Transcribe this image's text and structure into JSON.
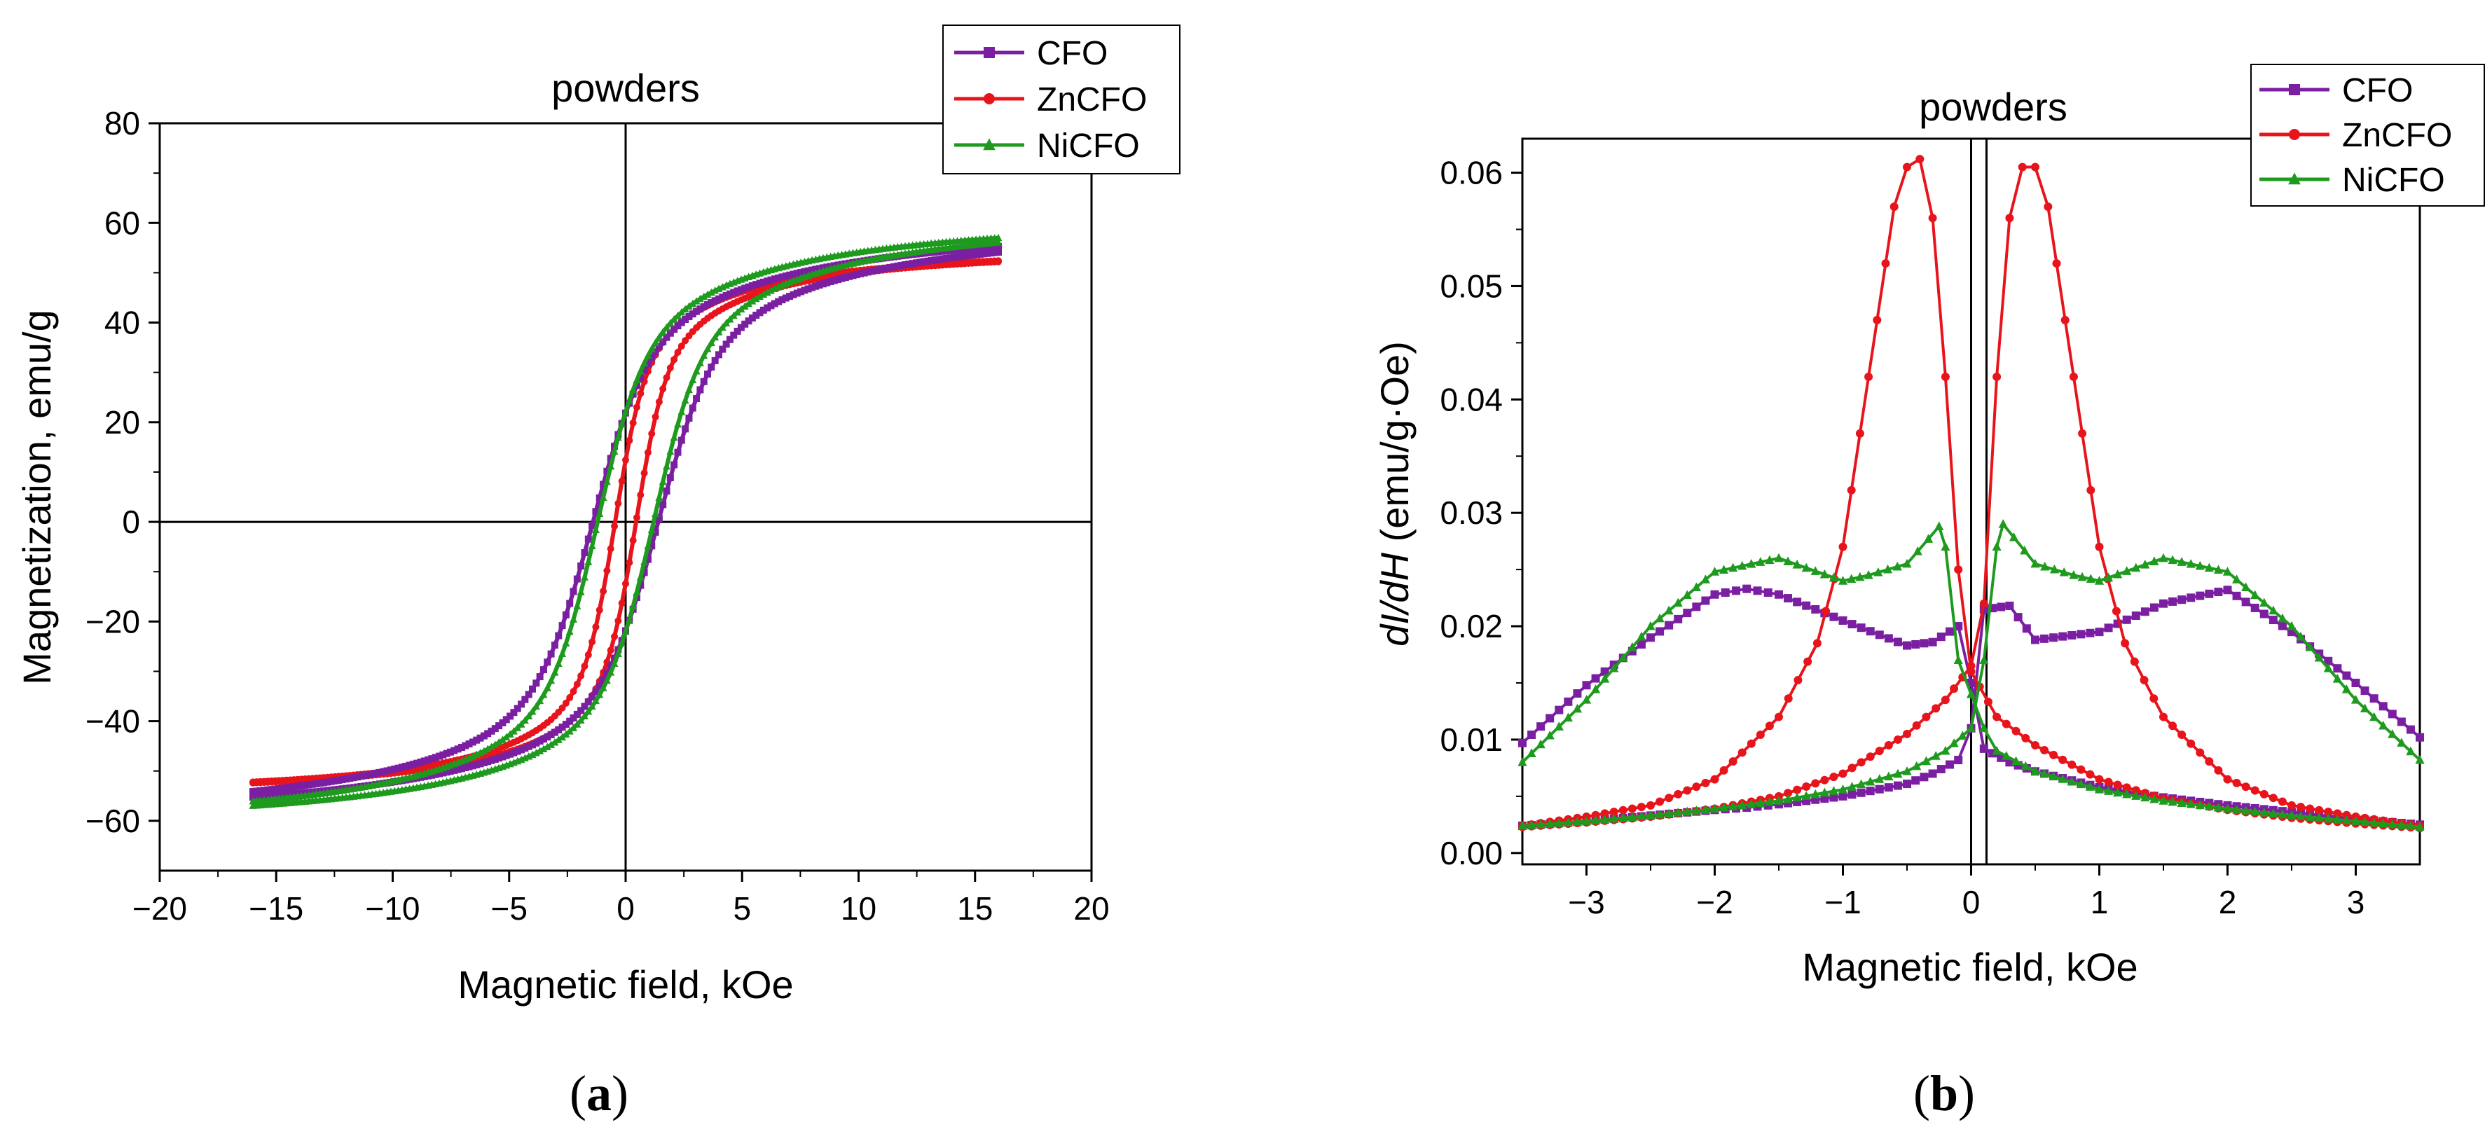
{
  "colors": {
    "CFO": "#7b1fa2",
    "ZnCFO": "#e8141c",
    "NiCFO": "#1e9a1e"
  },
  "chart_data": [
    {
      "type": "line",
      "panel_label": "a",
      "title": "powders",
      "xlabel": "Magnetic field, kOe",
      "ylabel": "Magnetization, emu/g",
      "xlim": [
        -20,
        20
      ],
      "ylim": [
        -70,
        80
      ],
      "xticks": [
        -20,
        -15,
        -10,
        -5,
        0,
        5,
        10,
        15,
        20
      ],
      "yticks": [
        -60,
        -40,
        -20,
        0,
        20,
        40,
        60,
        80
      ],
      "xtick_labels": [
        "−20",
        "−15",
        "−10",
        "−5",
        "0",
        "5",
        "10",
        "15",
        "20"
      ],
      "ytick_labels": [
        "−60",
        "−40",
        "−20",
        "0",
        "20",
        "40",
        "60",
        "80"
      ],
      "zero_lines": true,
      "legend": {
        "position": "top-right",
        "entries": [
          "CFO",
          "ZnCFO",
          "NiCFO"
        ]
      },
      "series": [
        {
          "name": "CFO",
          "marker": "square",
          "Ms": 62,
          "Hc": 1.4,
          "width": 2.2,
          "slope": 0.0
        },
        {
          "name": "ZnCFO",
          "marker": "circle",
          "Ms": 56,
          "Hc": 0.45,
          "width": 1.2,
          "slope": 0.0
        },
        {
          "name": "NiCFO",
          "marker": "triangle",
          "Ms": 63,
          "Hc": 1.2,
          "width": 1.9,
          "slope": 0.0
        }
      ]
    },
    {
      "type": "line",
      "panel_label": "b",
      "title": "powders",
      "xlabel": "Magnetic field, kOe",
      "ylabel_italic_part": "dI/dH",
      "ylabel_rest": " (emu/g·Oe)",
      "xlim": [
        -3.5,
        3.5
      ],
      "ylim": [
        -0.001,
        0.063
      ],
      "xticks": [
        -3,
        -2,
        -1,
        0,
        1,
        2,
        3
      ],
      "yticks": [
        0.0,
        0.01,
        0.02,
        0.03,
        0.04,
        0.05,
        0.06
      ],
      "xtick_labels": [
        "−3",
        "−2",
        "−1",
        "0",
        "1",
        "2",
        "3"
      ],
      "ytick_labels": [
        "0.00",
        "0.01",
        "0.02",
        "0.03",
        "0.04",
        "0.05",
        "0.06"
      ],
      "vertical_lines_x": [
        0,
        0.12
      ],
      "legend": {
        "position": "top-right",
        "entries": [
          "CFO",
          "ZnCFO",
          "NiCFO"
        ]
      },
      "series": [
        {
          "name": "CFO",
          "marker": "square",
          "branch": "up",
          "x": [
            -3.5,
            -3.0,
            -2.5,
            -2.0,
            -1.75,
            -1.5,
            -1.0,
            -0.5,
            -0.3,
            -0.1,
            0.0,
            0.1,
            0.3,
            0.5,
            1.0,
            1.5,
            2.0,
            2.5,
            3.0,
            3.5
          ],
          "y": [
            0.0024,
            0.0028,
            0.0033,
            0.0038,
            0.004,
            0.0043,
            0.005,
            0.0061,
            0.007,
            0.0082,
            0.011,
            0.0215,
            0.0218,
            0.0188,
            0.0195,
            0.022,
            0.0232,
            0.0195,
            0.015,
            0.0102
          ]
        },
        {
          "name": "CFO",
          "marker": "square",
          "branch": "down",
          "x": [
            -3.5,
            -3.0,
            -2.5,
            -2.0,
            -1.75,
            -1.5,
            -1.0,
            -0.5,
            -0.3,
            -0.1,
            0.0,
            0.1,
            0.3,
            0.5,
            1.0,
            1.5,
            2.0,
            2.5,
            3.0,
            3.5
          ],
          "y": [
            0.0097,
            0.0148,
            0.019,
            0.0228,
            0.0233,
            0.0228,
            0.0205,
            0.0183,
            0.0186,
            0.02,
            0.015,
            0.0092,
            0.008,
            0.0072,
            0.0058,
            0.0049,
            0.0042,
            0.0036,
            0.003,
            0.0025
          ]
        },
        {
          "name": "ZnCFO",
          "marker": "circle",
          "branch": "up",
          "x": [
            -3.5,
            -3.0,
            -2.5,
            -2.0,
            -1.5,
            -1.0,
            -0.5,
            -0.2,
            0.0,
            0.1,
            0.2,
            0.3,
            0.4,
            0.5,
            0.6,
            0.8,
            1.0,
            1.2,
            1.5,
            2.0,
            2.5,
            3.0,
            3.5
          ],
          "y": [
            0.0023,
            0.0027,
            0.0032,
            0.0039,
            0.005,
            0.007,
            0.0105,
            0.0135,
            0.0165,
            0.022,
            0.042,
            0.056,
            0.0605,
            0.0605,
            0.057,
            0.042,
            0.027,
            0.0185,
            0.012,
            0.0065,
            0.0042,
            0.0032,
            0.0024
          ]
        },
        {
          "name": "ZnCFO",
          "marker": "circle",
          "branch": "down",
          "x": [
            -3.5,
            -3.0,
            -2.5,
            -2.0,
            -1.5,
            -1.2,
            -1.0,
            -0.8,
            -0.6,
            -0.5,
            -0.4,
            -0.3,
            -0.2,
            -0.1,
            0.0,
            0.2,
            0.5,
            1.0,
            1.5,
            2.0,
            2.5,
            3.0,
            3.5
          ],
          "y": [
            0.0024,
            0.0032,
            0.0042,
            0.0065,
            0.012,
            0.0185,
            0.027,
            0.042,
            0.057,
            0.0605,
            0.0612,
            0.056,
            0.042,
            0.025,
            0.016,
            0.012,
            0.0095,
            0.0065,
            0.0048,
            0.0038,
            0.0031,
            0.0026,
            0.0022
          ]
        },
        {
          "name": "NiCFO",
          "marker": "triangle",
          "branch": "up",
          "x": [
            -3.5,
            -3.0,
            -2.5,
            -2.0,
            -1.5,
            -1.0,
            -0.5,
            -0.2,
            0.0,
            0.1,
            0.2,
            0.25,
            0.5,
            0.8,
            1.0,
            1.5,
            2.0,
            2.5,
            3.0,
            3.5
          ],
          "y": [
            0.0024,
            0.0028,
            0.0033,
            0.0039,
            0.0046,
            0.0056,
            0.0072,
            0.009,
            0.011,
            0.017,
            0.027,
            0.029,
            0.0255,
            0.0245,
            0.024,
            0.026,
            0.0248,
            0.02,
            0.0135,
            0.0082
          ]
        },
        {
          "name": "NiCFO",
          "marker": "triangle",
          "branch": "down",
          "x": [
            -3.5,
            -3.0,
            -2.5,
            -2.0,
            -1.5,
            -1.0,
            -0.8,
            -0.5,
            -0.25,
            -0.2,
            -0.1,
            0.0,
            0.1,
            0.2,
            0.5,
            1.0,
            1.5,
            2.0,
            2.5,
            3.0,
            3.5
          ],
          "y": [
            0.008,
            0.0135,
            0.02,
            0.0248,
            0.026,
            0.024,
            0.0245,
            0.0255,
            0.0288,
            0.027,
            0.017,
            0.014,
            0.011,
            0.009,
            0.0072,
            0.0056,
            0.0046,
            0.0039,
            0.0033,
            0.0028,
            0.0023
          ]
        }
      ]
    }
  ]
}
